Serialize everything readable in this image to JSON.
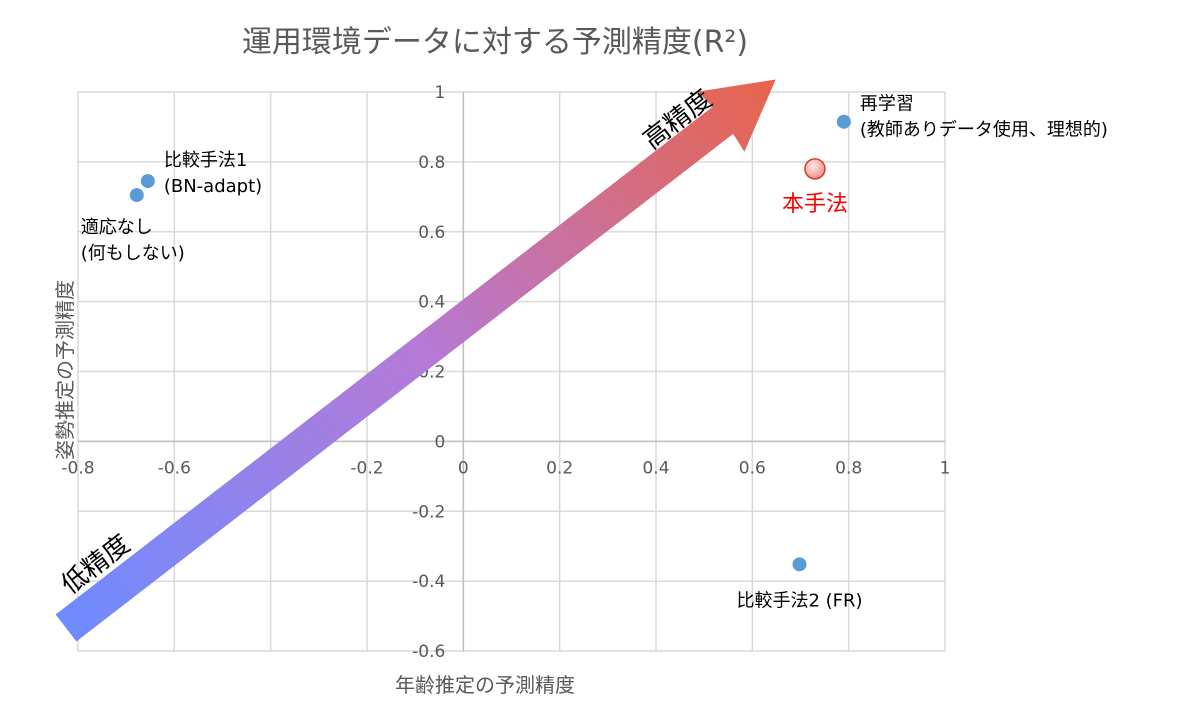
{
  "chart_data": {
    "type": "scatter",
    "title": "運用環境データに対する予測精度(R²)",
    "xlabel": "年齢推定の予測精度",
    "ylabel": "姿勢推定の予測精度",
    "xlim": [
      -0.8,
      1
    ],
    "ylim": [
      -0.6,
      1
    ],
    "grid": true,
    "x_ticks": [
      "-0.8",
      "-0.6",
      "-0.4",
      "-0.2",
      "0",
      "0.2",
      "0.4",
      "0.6",
      "0.8",
      "1"
    ],
    "x_tick_values": [
      -0.8,
      -0.6,
      -0.4,
      -0.2,
      0,
      0.2,
      0.4,
      0.6,
      0.8,
      1
    ],
    "y_ticks": [
      "1",
      "0.8",
      "0.6",
      "0.4",
      "0.2",
      "0",
      "-0.2",
      "-0.4",
      "-0.6"
    ],
    "y_tick_values": [
      1,
      0.8,
      0.6,
      0.4,
      0.2,
      0,
      -0.2,
      -0.4,
      -0.6
    ],
    "points": [
      {
        "name": "retrain",
        "label": [
          "再学習",
          "(教師ありデータ使用、理想的)"
        ],
        "x": 0.79,
        "y": 0.915,
        "color": "#5b9bd5",
        "label_color": "#000000"
      },
      {
        "name": "proposed",
        "label": [
          "本手法"
        ],
        "x": 0.73,
        "y": 0.78,
        "color": "#f4a6a0",
        "label_color": "#ff0000"
      },
      {
        "name": "comparison-1",
        "label": [
          "比較手法1",
          "(BN-adapt)"
        ],
        "x": -0.655,
        "y": 0.745,
        "color": "#5b9bd5",
        "label_color": "#000000"
      },
      {
        "name": "no-adaptation",
        "label": [
          "適応なし",
          "(何もしない)"
        ],
        "x": -0.678,
        "y": 0.705,
        "color": "#5b9bd5",
        "label_color": "#000000"
      },
      {
        "name": "comparison-2",
        "label": [
          "比較手法2 (FR)"
        ],
        "x": 0.698,
        "y": -0.352,
        "color": "#5b9bd5",
        "label_color": "#000000"
      }
    ],
    "annotations": {
      "arrow_low_label": "低精度",
      "arrow_high_label": "高精度",
      "arrow_start_color": "#6e8bff",
      "arrow_end_color": "#e8644a"
    }
  }
}
